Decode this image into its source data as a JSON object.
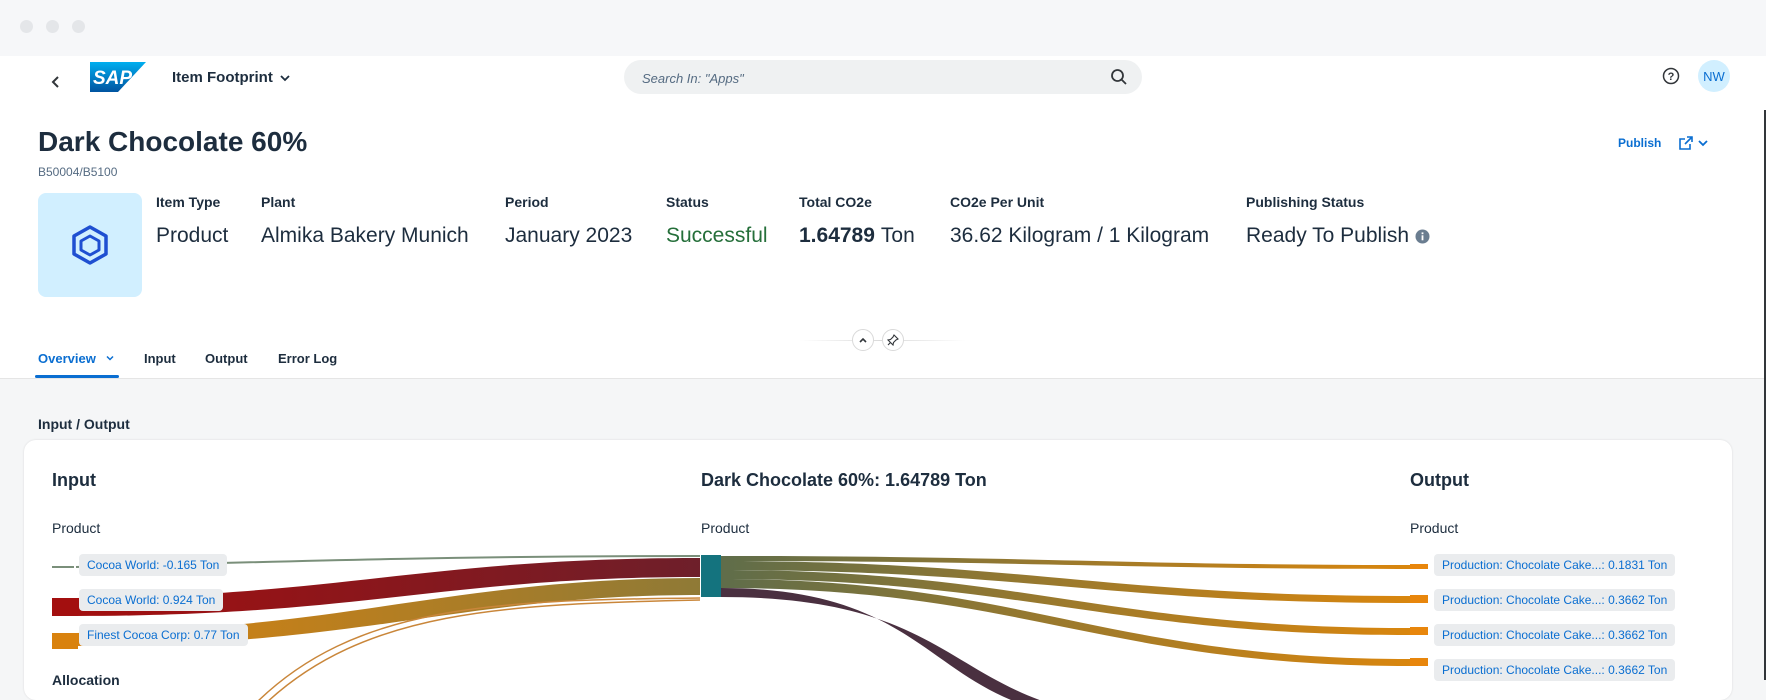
{
  "shell": {
    "app_name": "Item Footprint",
    "search_placeholder": "Search In: \"Apps\"",
    "logo_text": "SAP",
    "user_initials": "NW"
  },
  "header": {
    "title": "Dark Chocolate 60%",
    "subtitle": "B50004/B5100",
    "publish_label": "Publish",
    "attributes": [
      {
        "label": "Item Type",
        "value": "Product"
      },
      {
        "label": "Plant",
        "value": "Almika Bakery Munich"
      },
      {
        "label": "Period",
        "value": "January 2023"
      },
      {
        "label": "Status",
        "value": "Successful"
      },
      {
        "label": "Total CO2e",
        "value_bold": "1.64789",
        "value_unit": "Ton"
      },
      {
        "label": "CO2e Per Unit",
        "value": "36.62 Kilogram / 1 Kilogram"
      },
      {
        "label": "Publishing Status",
        "value": "Ready To Publish"
      }
    ]
  },
  "tabs": [
    {
      "label": "Overview",
      "active": true
    },
    {
      "label": "Input",
      "active": false
    },
    {
      "label": "Output",
      "active": false
    },
    {
      "label": "Error Log",
      "active": false
    }
  ],
  "section_title": "Input / Output",
  "io_card": {
    "input_heading": "Input",
    "center_heading": "Dark Chocolate 60%: 1.64789 Ton",
    "output_heading": "Output",
    "input_sub": "Product",
    "center_sub": "Product",
    "output_sub": "Product",
    "input_allocation_label": "Allocation",
    "input_nodes": [
      {
        "label": "Cocoa World: -0.165 Ton",
        "color": "#7a8f7a"
      },
      {
        "label": "Cocoa World: 0.924 Ton",
        "color": "#a30f0f"
      },
      {
        "label": "Finest Cocoa Corp: 0.77 Ton",
        "color": "#d9820e"
      }
    ],
    "output_nodes": [
      {
        "label": "Production: Chocolate Cake...: 0.1831 Ton",
        "color": "#e8860c"
      },
      {
        "label": "Production: Chocolate Cake...: 0.3662 Ton",
        "color": "#e8860c"
      },
      {
        "label": "Production: Chocolate Cake...: 0.3662 Ton",
        "color": "#e8860c"
      },
      {
        "label": "Production: Chocolate Cake...: 0.3662 Ton",
        "color": "#e8860c"
      }
    ],
    "center_node_color": "#14737e"
  }
}
